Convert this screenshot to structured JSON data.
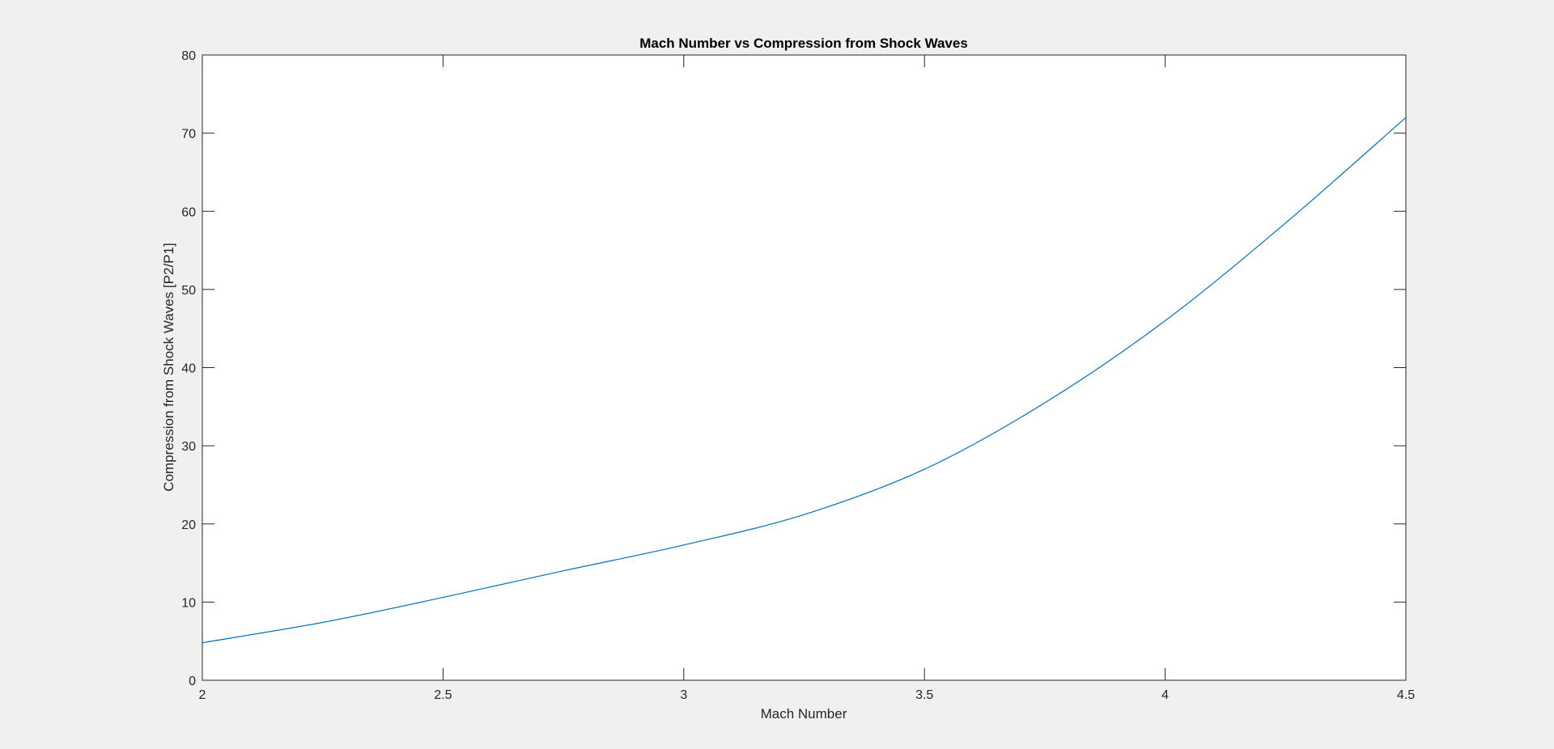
{
  "chart_data": {
    "type": "line",
    "title": "Mach Number vs Compression from Shock Waves",
    "xlabel": "Mach Number",
    "ylabel": "Compression from Shock Waves [P2/P1]",
    "xlim": [
      2,
      4.5
    ],
    "ylim": [
      0,
      80
    ],
    "xticks": [
      2,
      2.5,
      3,
      3.5,
      4,
      4.5
    ],
    "yticks": [
      0,
      10,
      20,
      30,
      40,
      50,
      60,
      70,
      80
    ],
    "grid": false,
    "box": true,
    "colors": {
      "line": "#0072bd",
      "axes": "#262626",
      "background": "#ffffff",
      "figure": "#f0f0f0"
    },
    "series": [
      {
        "x": [
          2.0,
          2.25,
          2.5,
          2.75,
          3.0,
          3.25,
          3.5,
          3.75,
          4.0,
          4.25,
          4.5
        ],
        "y": [
          4.8,
          7.4,
          10.6,
          14.0,
          17.3,
          21.2,
          27.0,
          35.5,
          46.0,
          58.5,
          72.0
        ]
      }
    ]
  }
}
